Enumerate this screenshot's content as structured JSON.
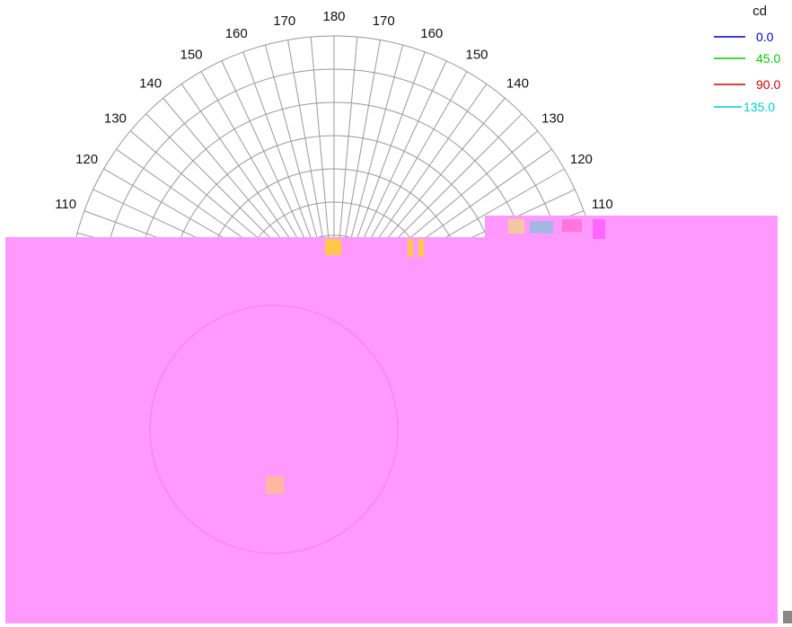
{
  "chart_data": {
    "type": "polar",
    "unit": "cd",
    "angle_ticks_left": [
      "110",
      "120",
      "130",
      "140",
      "150",
      "160",
      "170"
    ],
    "angle_tick_top": "180",
    "angle_ticks_right": [
      "170",
      "160",
      "150",
      "140",
      "130",
      "120",
      "110"
    ],
    "angle_values_left": [
      110,
      120,
      130,
      140,
      150,
      160,
      170
    ],
    "angle_values_right": [
      170,
      160,
      150,
      140,
      130,
      120,
      110
    ],
    "angle_step_deg": 5,
    "radial_rings": 8,
    "legend": {
      "placement": "top-right",
      "entries": [
        {
          "label": "0.0",
          "color": "#0000cc"
        },
        {
          "label": "45.0",
          "color": "#00cc00"
        },
        {
          "label": "90.0",
          "color": "#cc0000"
        },
        {
          "label": "135.0",
          "color": "#00cccc"
        }
      ]
    },
    "grid": true
  },
  "overlay": {
    "color": "#ff99ff"
  }
}
